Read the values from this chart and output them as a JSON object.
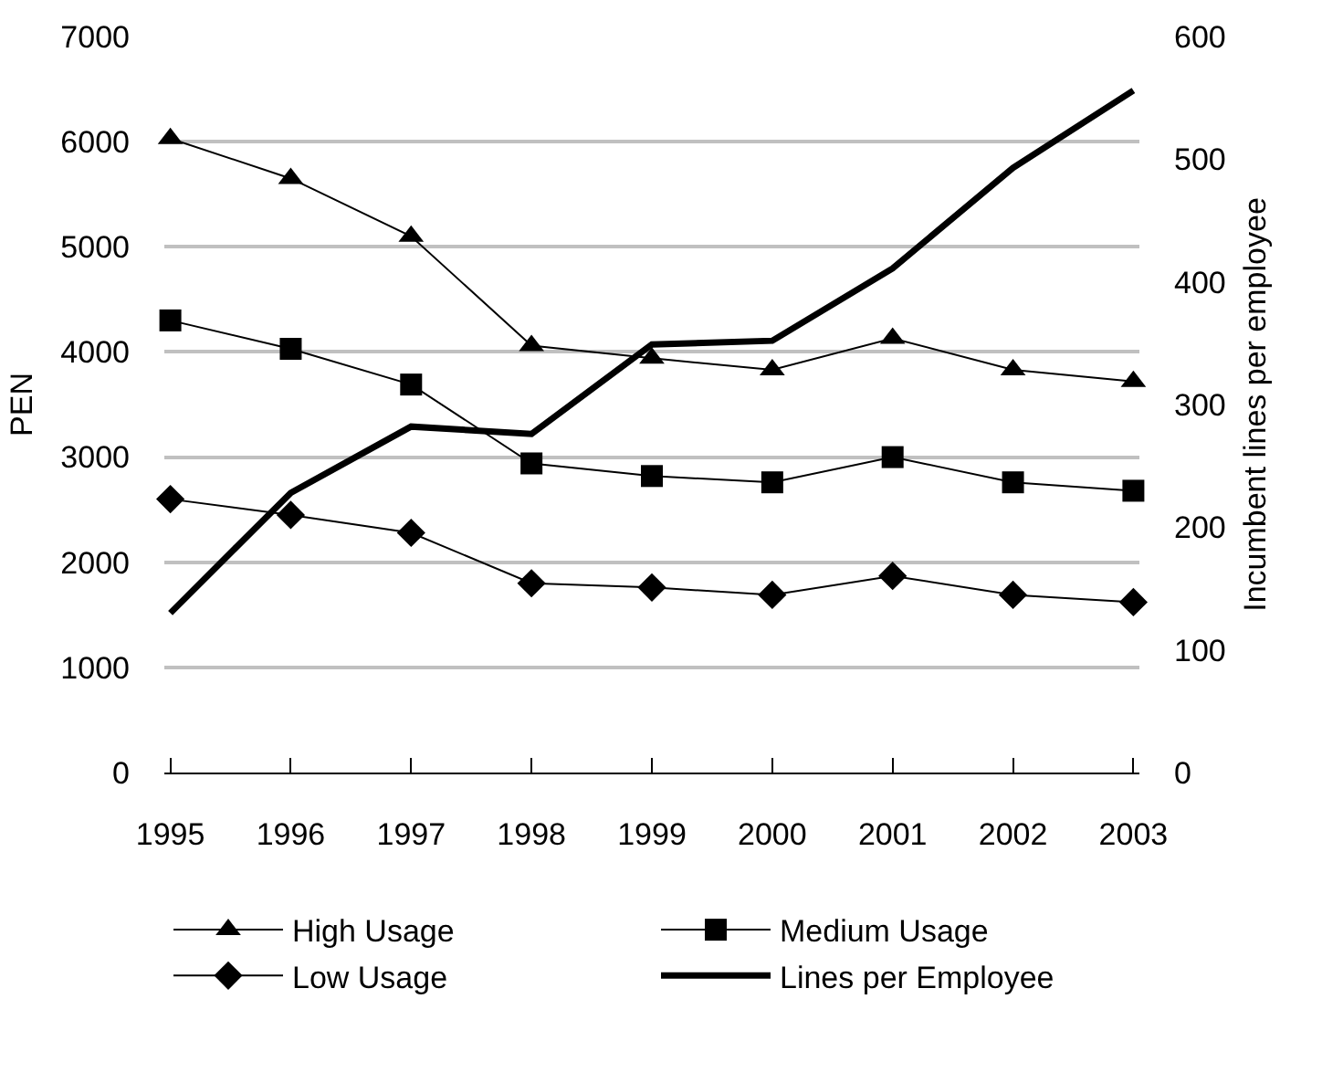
{
  "chart_data": {
    "type": "line",
    "ylabel": "PEN",
    "y2label": "Incumbent lines per employee",
    "categories": [
      "1995",
      "1996",
      "1997",
      "1998",
      "1999",
      "2000",
      "2001",
      "2002",
      "2003"
    ],
    "series": [
      {
        "name": "High Usage",
        "color": "#000000",
        "marker": "triangle",
        "values": [
          6030,
          5650,
          5100,
          4060,
          3940,
          3830,
          4130,
          3830,
          3720
        ]
      },
      {
        "name": "Medium Usage",
        "color": "#000000",
        "marker": "square",
        "values": [
          4300,
          4030,
          3690,
          2940,
          2820,
          2760,
          3000,
          2760,
          2680
        ]
      },
      {
        "name": "Low Usage",
        "color": "#000000",
        "marker": "diamond",
        "values": [
          2600,
          2450,
          2280,
          1800,
          1760,
          1690,
          1870,
          1690,
          1620
        ]
      },
      {
        "name": "Lines per Employee",
        "color": "#000000",
        "marker": "none",
        "axis": "y2",
        "values": [
          130,
          228,
          282,
          276,
          349,
          352,
          411,
          493,
          556
        ]
      }
    ],
    "ylim": [
      0,
      7000
    ],
    "yticks": [
      0,
      1000,
      2000,
      3000,
      4000,
      5000,
      6000,
      7000
    ],
    "y2lim": [
      0,
      600
    ],
    "y2ticks": [
      0,
      100,
      200,
      300,
      400,
      500,
      600
    ],
    "grid": "y",
    "legend": "bottom",
    "line_style": "solid"
  }
}
